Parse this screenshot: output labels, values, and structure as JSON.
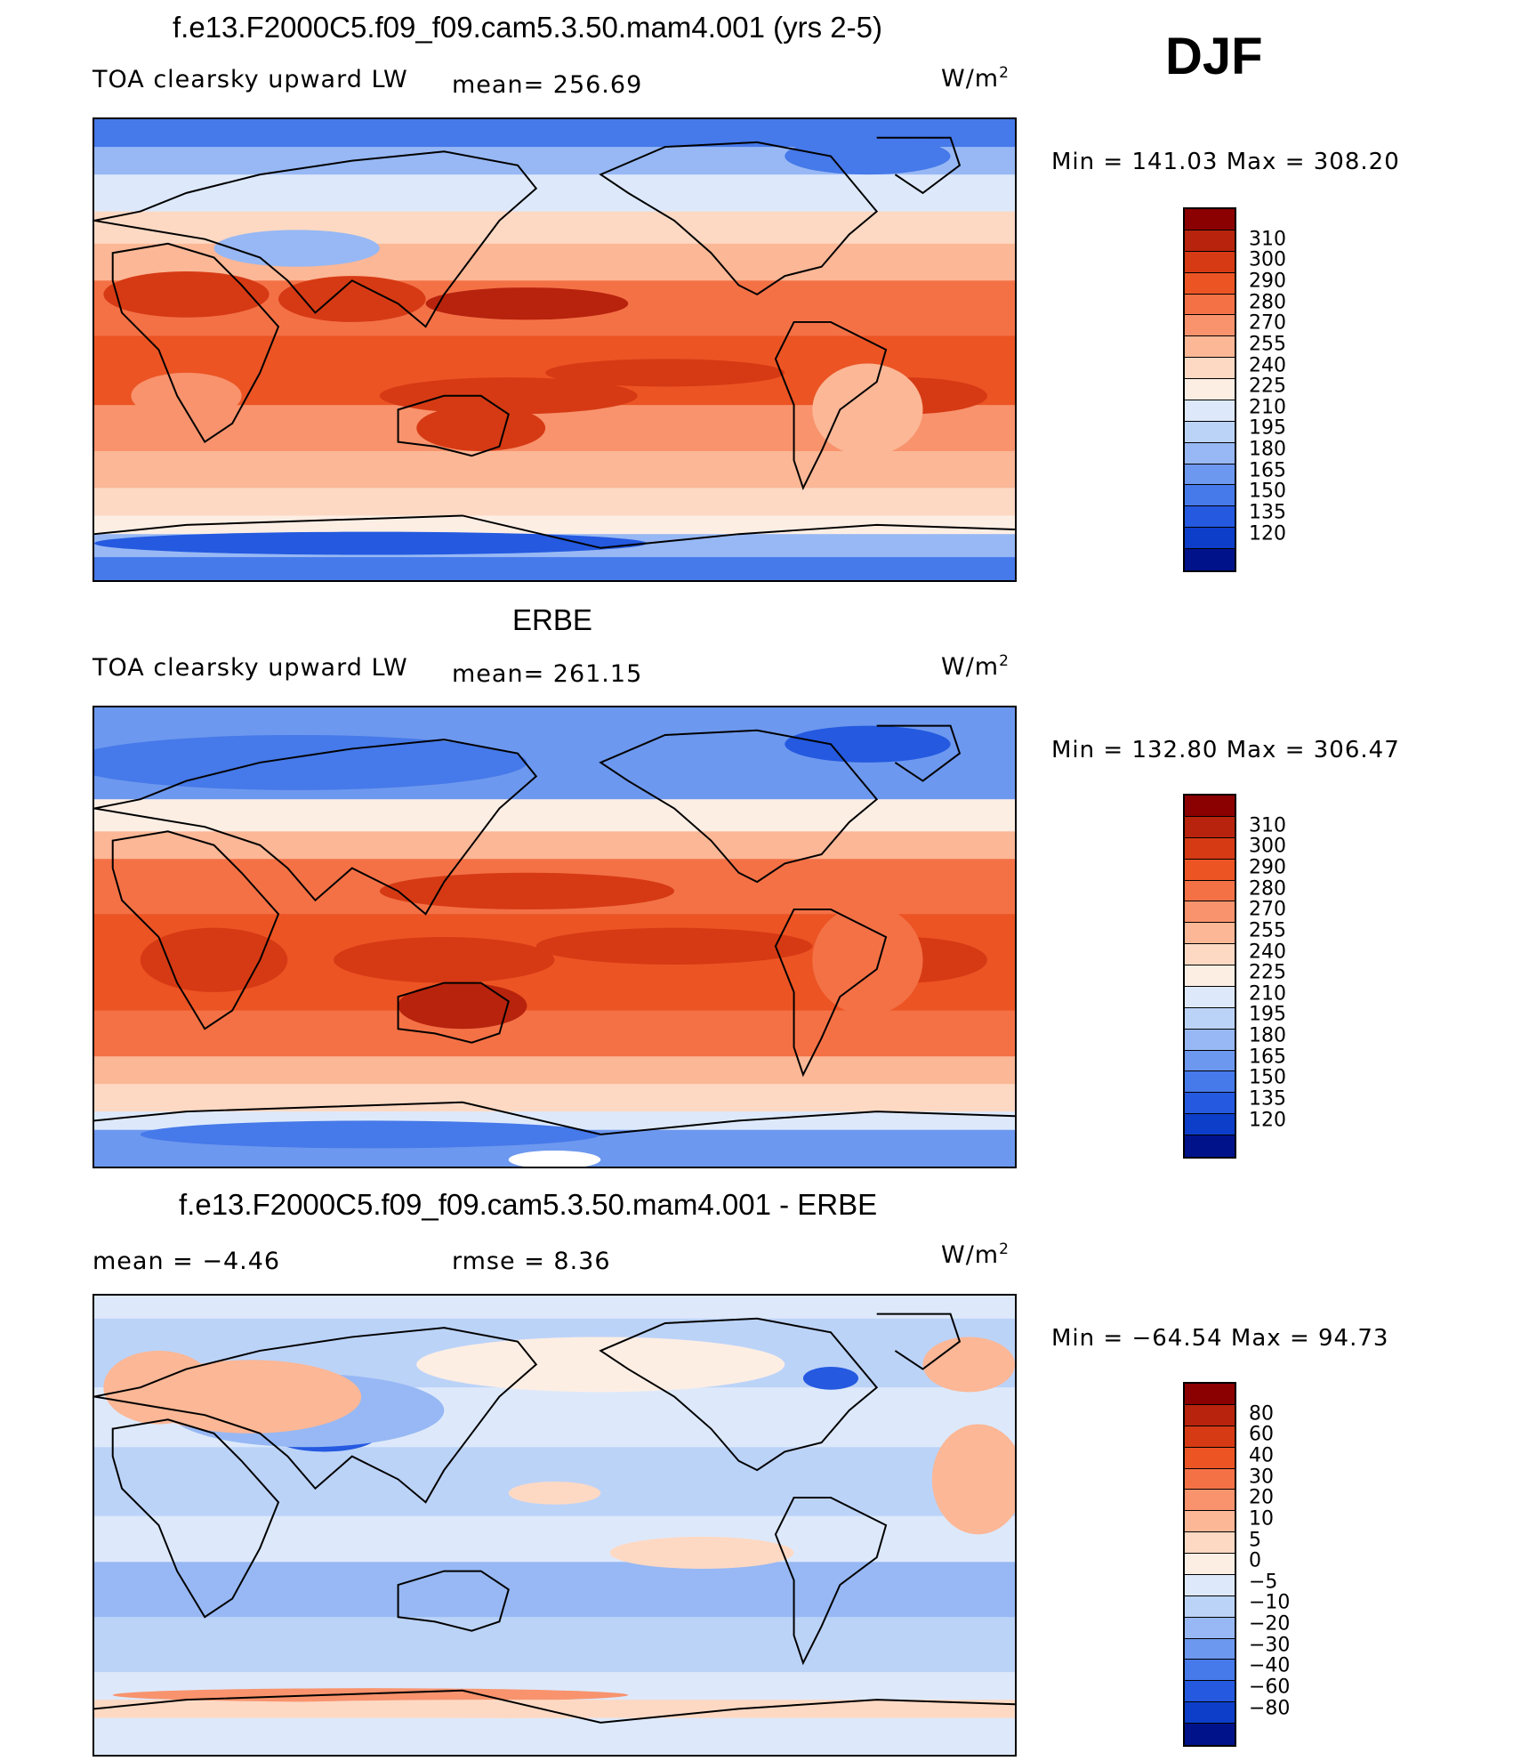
{
  "season": "DJF",
  "colors": {
    "land_outline": "#000000",
    "warm_scale": [
      "#fde9dc",
      "#fbc7b0",
      "#f99f7e",
      "#f57a52",
      "#f25c2e",
      "#e8401c",
      "#c42f14",
      "#8b0000"
    ],
    "cool_scale": [
      "#dde9fb",
      "#bcd3f8",
      "#97b8f4",
      "#6d98ef",
      "#4679e9",
      "#2459e0",
      "#0d3ec9",
      "#0a27a8",
      "#00128a"
    ]
  },
  "panels": [
    {
      "title": "f.e13.F2000C5.f09_f09.cam5.3.50.mam4.001 (yrs 2-5)",
      "left_label": "TOA clearsky upward LW",
      "mid_label": "mean= 256.69",
      "units_base": "W/m",
      "units_exp": "2",
      "minmax": "Min  =  141.03  Max  =  308.20",
      "colorbar": {
        "labels": [
          "310",
          "300",
          "290",
          "280",
          "270",
          "255",
          "240",
          "225",
          "210",
          "195",
          "180",
          "165",
          "150",
          "135",
          "120"
        ],
        "colors": [
          "#8b0000",
          "#b8230d",
          "#d63a14",
          "#ec5424",
          "#f47146",
          "#f8936d",
          "#fbb796",
          "#fdd9c4",
          "#fdeee4",
          "#dde9fb",
          "#bcd3f8",
          "#97b8f4",
          "#6d98ef",
          "#4679e9",
          "#2459e0",
          "#0d3ec9",
          "#00128a"
        ]
      },
      "field": "model"
    },
    {
      "title": "ERBE",
      "left_label": "TOA clearsky upward LW",
      "mid_label": "mean= 261.15",
      "units_base": "W/m",
      "units_exp": "2",
      "minmax": "Min  =  132.80  Max  =  306.47",
      "colorbar": {
        "labels": [
          "310",
          "300",
          "290",
          "280",
          "270",
          "255",
          "240",
          "225",
          "210",
          "195",
          "180",
          "165",
          "150",
          "135",
          "120"
        ],
        "colors": [
          "#8b0000",
          "#b8230d",
          "#d63a14",
          "#ec5424",
          "#f47146",
          "#f8936d",
          "#fbb796",
          "#fdd9c4",
          "#fdeee4",
          "#dde9fb",
          "#bcd3f8",
          "#97b8f4",
          "#6d98ef",
          "#4679e9",
          "#2459e0",
          "#0d3ec9",
          "#00128a"
        ]
      },
      "field": "obs"
    },
    {
      "title": "f.e13.F2000C5.f09_f09.cam5.3.50.mam4.001 - ERBE",
      "left_label": "mean  =     −4.46",
      "mid_label": "rmse  =     8.36",
      "units_base": "W/m",
      "units_exp": "2",
      "minmax": "Min  =  −64.54  Max  =    94.73",
      "colorbar": {
        "labels": [
          "80",
          "60",
          "40",
          "30",
          "20",
          "10",
          "5",
          "0",
          "−5",
          "−10",
          "−20",
          "−30",
          "−40",
          "−60",
          "−80"
        ],
        "colors": [
          "#8b0000",
          "#b8230d",
          "#d63a14",
          "#ec5424",
          "#f47146",
          "#f8936d",
          "#fbb796",
          "#fdd9c4",
          "#fdeee4",
          "#dde9fb",
          "#bcd3f8",
          "#97b8f4",
          "#6d98ef",
          "#4679e9",
          "#2459e0",
          "#0d3ec9",
          "#00128a"
        ]
      },
      "field": "diff"
    }
  ]
}
